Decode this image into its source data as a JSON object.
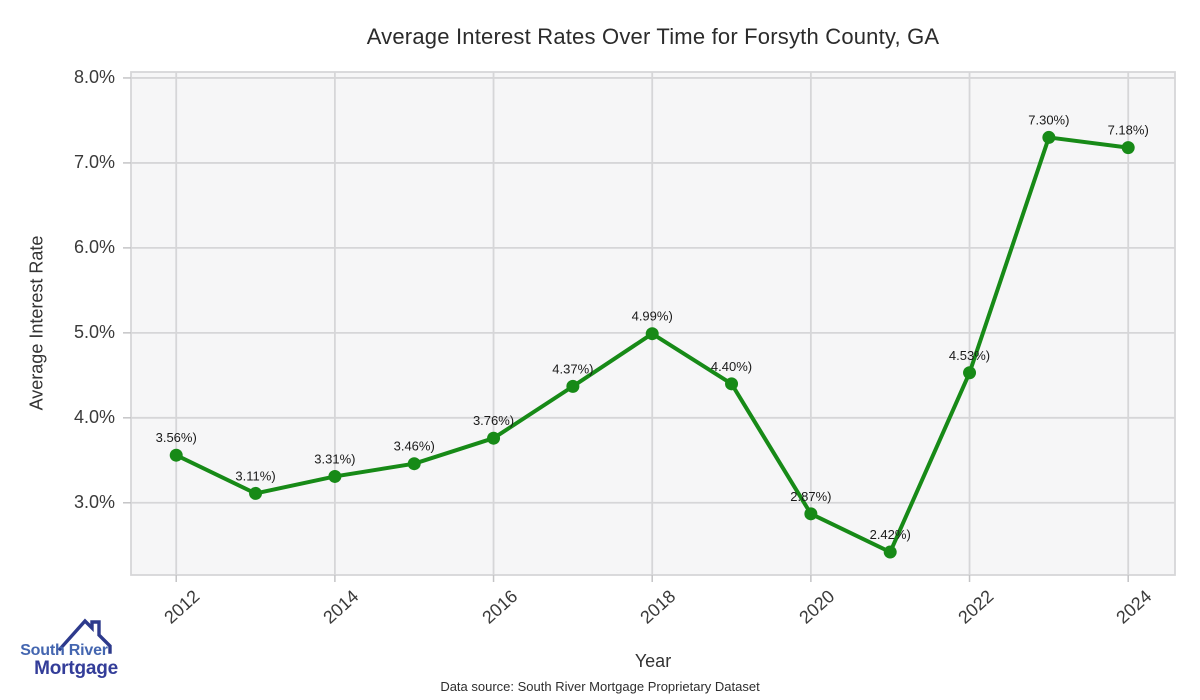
{
  "chart_data": {
    "type": "line",
    "title": "Average Interest Rates Over Time for Forsyth County, GA",
    "xlabel": "Year",
    "ylabel": "Average Interest Rate",
    "x": [
      2012,
      2013,
      2014,
      2015,
      2016,
      2017,
      2018,
      2019,
      2020,
      2021,
      2022,
      2023,
      2024
    ],
    "values": [
      3.56,
      3.11,
      3.31,
      3.46,
      3.76,
      4.37,
      4.99,
      4.4,
      2.87,
      2.42,
      4.53,
      7.3,
      7.18
    ],
    "point_labels": [
      "3.56%)",
      "3.11%)",
      "3.31%)",
      "3.46%)",
      "3.76%)",
      "4.37%)",
      "4.99%)",
      "4.40%)",
      "2.87%)",
      "2.42%)",
      "4.53%)",
      "7.30%)",
      "7.18%)"
    ],
    "xticks": [
      2012,
      2014,
      2016,
      2018,
      2020,
      2022,
      2024
    ],
    "xtick_labels": [
      "2012",
      "2014",
      "2016",
      "2018",
      "2020",
      "2022",
      "2024"
    ],
    "yticks": [
      3,
      4,
      5,
      6,
      7,
      8
    ],
    "ytick_labels": [
      "3.0%",
      "4.0%",
      "5.0%",
      "6.0%",
      "7.0%",
      "8.0%"
    ],
    "xlim": [
      2011.43,
      2024.59
    ],
    "ylim": [
      2.15,
      8.07
    ],
    "grid": true,
    "legend": "none",
    "colors": {
      "line": "#178a17",
      "marker": "#178a17",
      "plot_bg": "#f6f6f7",
      "grid": "#d6d6d8",
      "tick_mark": "#c4c4c6",
      "point_label": "#1a1a1a"
    }
  },
  "footer": {
    "source": "Data source: South River Mortgage Proprietary Dataset"
  },
  "logo": {
    "line1": "South River",
    "line2": "Mortgage",
    "colors": {
      "line1": "#4466b0",
      "line2": "#333d99",
      "roof": "#2d3a8c"
    }
  }
}
